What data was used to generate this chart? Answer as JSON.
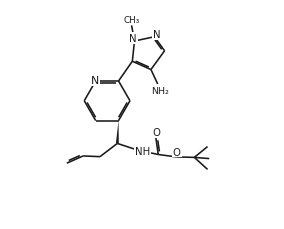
{
  "background": "#ffffff",
  "line_color": "#1a1a1a",
  "line_width": 1.15,
  "font_size": 6.8,
  "figsize": [
    2.84,
    2.3
  ],
  "dpi": 100,
  "xlim": [
    0.0,
    10.5
  ],
  "ylim": [
    0.5,
    10.0
  ]
}
